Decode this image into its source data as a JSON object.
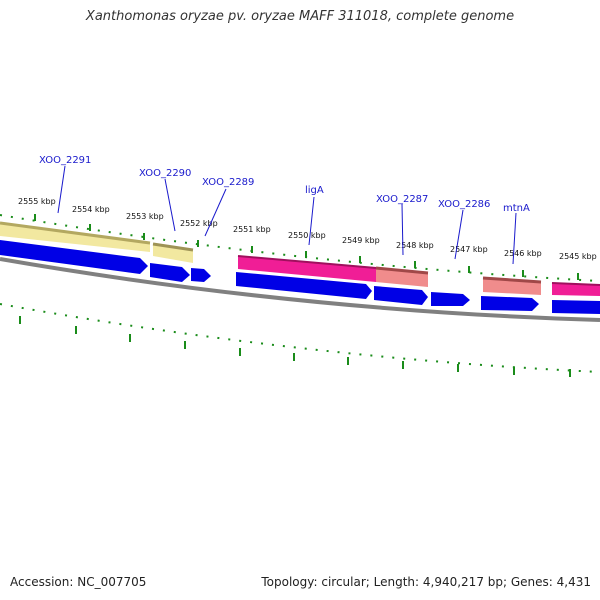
{
  "header": {
    "title": "Xanthomonas oryzae pv. oryzae MAFF 311018, complete genome"
  },
  "footer": {
    "accession": "Accession: NC_007705",
    "summary": "Topology: circular; Length: 4,940,217 bp; Genes: 4,431"
  },
  "scale": {
    "kbp_labels": [
      "2555 kbp",
      "2554 kbp",
      "2553 kbp",
      "2552 kbp",
      "2551 kbp",
      "2550 kbp",
      "2549 kbp",
      "2548 kbp",
      "2547 kbp",
      "2546 kbp",
      "2545 kbp"
    ]
  },
  "genes": {
    "labels": [
      "XOO_2291",
      "XOO_2290",
      "XOO_2289",
      "ligA",
      "XOO_2287",
      "XOO_2286",
      "mtnA"
    ]
  },
  "colors": {
    "cds": "#0000e6",
    "feature_yellow": "#f2e8a0",
    "feature_magenta": "#f01e96",
    "feature_pink": "#f08c8c",
    "tick": "#1a8c1a",
    "backbone": "#808080",
    "label": "#1a1acc"
  }
}
